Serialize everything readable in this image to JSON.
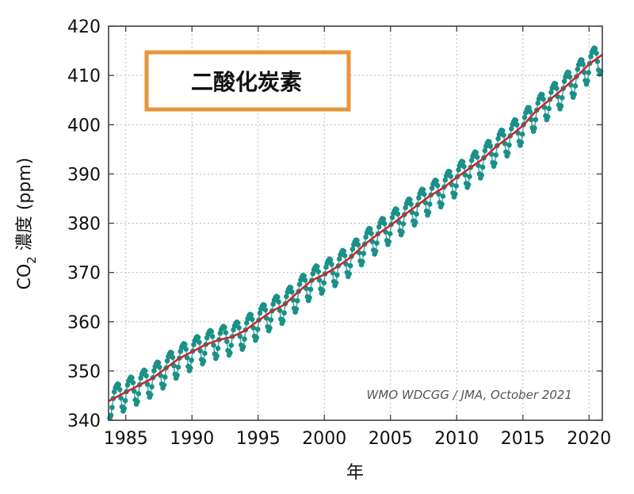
{
  "chart_data": {
    "type": "line",
    "title": "二酸化炭素",
    "xlabel": "年",
    "ylabel_main": "CO",
    "ylabel_sub": "2",
    "ylabel_rest": " 濃度 (ppm)",
    "credit": "WMO WDCGG / JMA, October 2021",
    "xlim": [
      1983.7,
      2021.0
    ],
    "ylim": [
      340,
      420
    ],
    "x_ticks": [
      1985,
      1990,
      1995,
      2000,
      2005,
      2010,
      2015,
      2020
    ],
    "y_ticks": [
      340,
      350,
      360,
      370,
      380,
      390,
      400,
      410,
      420
    ],
    "grid": true,
    "colors": {
      "trend": "#c8282d",
      "monthly": "#1a9088",
      "title_box": "#e8953a",
      "grid": "#b9b9b9"
    },
    "series": [
      {
        "kind": "trend",
        "x": [
          1984,
          1985,
          1986,
          1987,
          1988,
          1989,
          1990,
          1991,
          1992,
          1993,
          1994,
          1995,
          1996,
          1997,
          1998,
          1999,
          2000,
          2001,
          2002,
          2003,
          2004,
          2005,
          2006,
          2007,
          2008,
          2009,
          2010,
          2011,
          2012,
          2013,
          2014,
          2015,
          2016,
          2017,
          2018,
          2019,
          2020,
          2021
        ],
        "values": [
          344.3,
          345.7,
          347.1,
          348.5,
          350.5,
          352.5,
          353.9,
          355.3,
          356.3,
          356.9,
          358.2,
          360.2,
          362.1,
          363.5,
          366.0,
          368.3,
          369.6,
          371.2,
          373.1,
          375.6,
          377.7,
          379.6,
          381.6,
          383.6,
          385.6,
          387.2,
          389.3,
          391.2,
          393.1,
          395.6,
          397.6,
          399.8,
          402.8,
          405.0,
          407.2,
          409.6,
          412.3,
          414.2
        ]
      },
      {
        "kind": "monthly",
        "seasonal_amplitude_ppm": 3.0,
        "phase": "maximum around May, minimum around September"
      }
    ]
  }
}
